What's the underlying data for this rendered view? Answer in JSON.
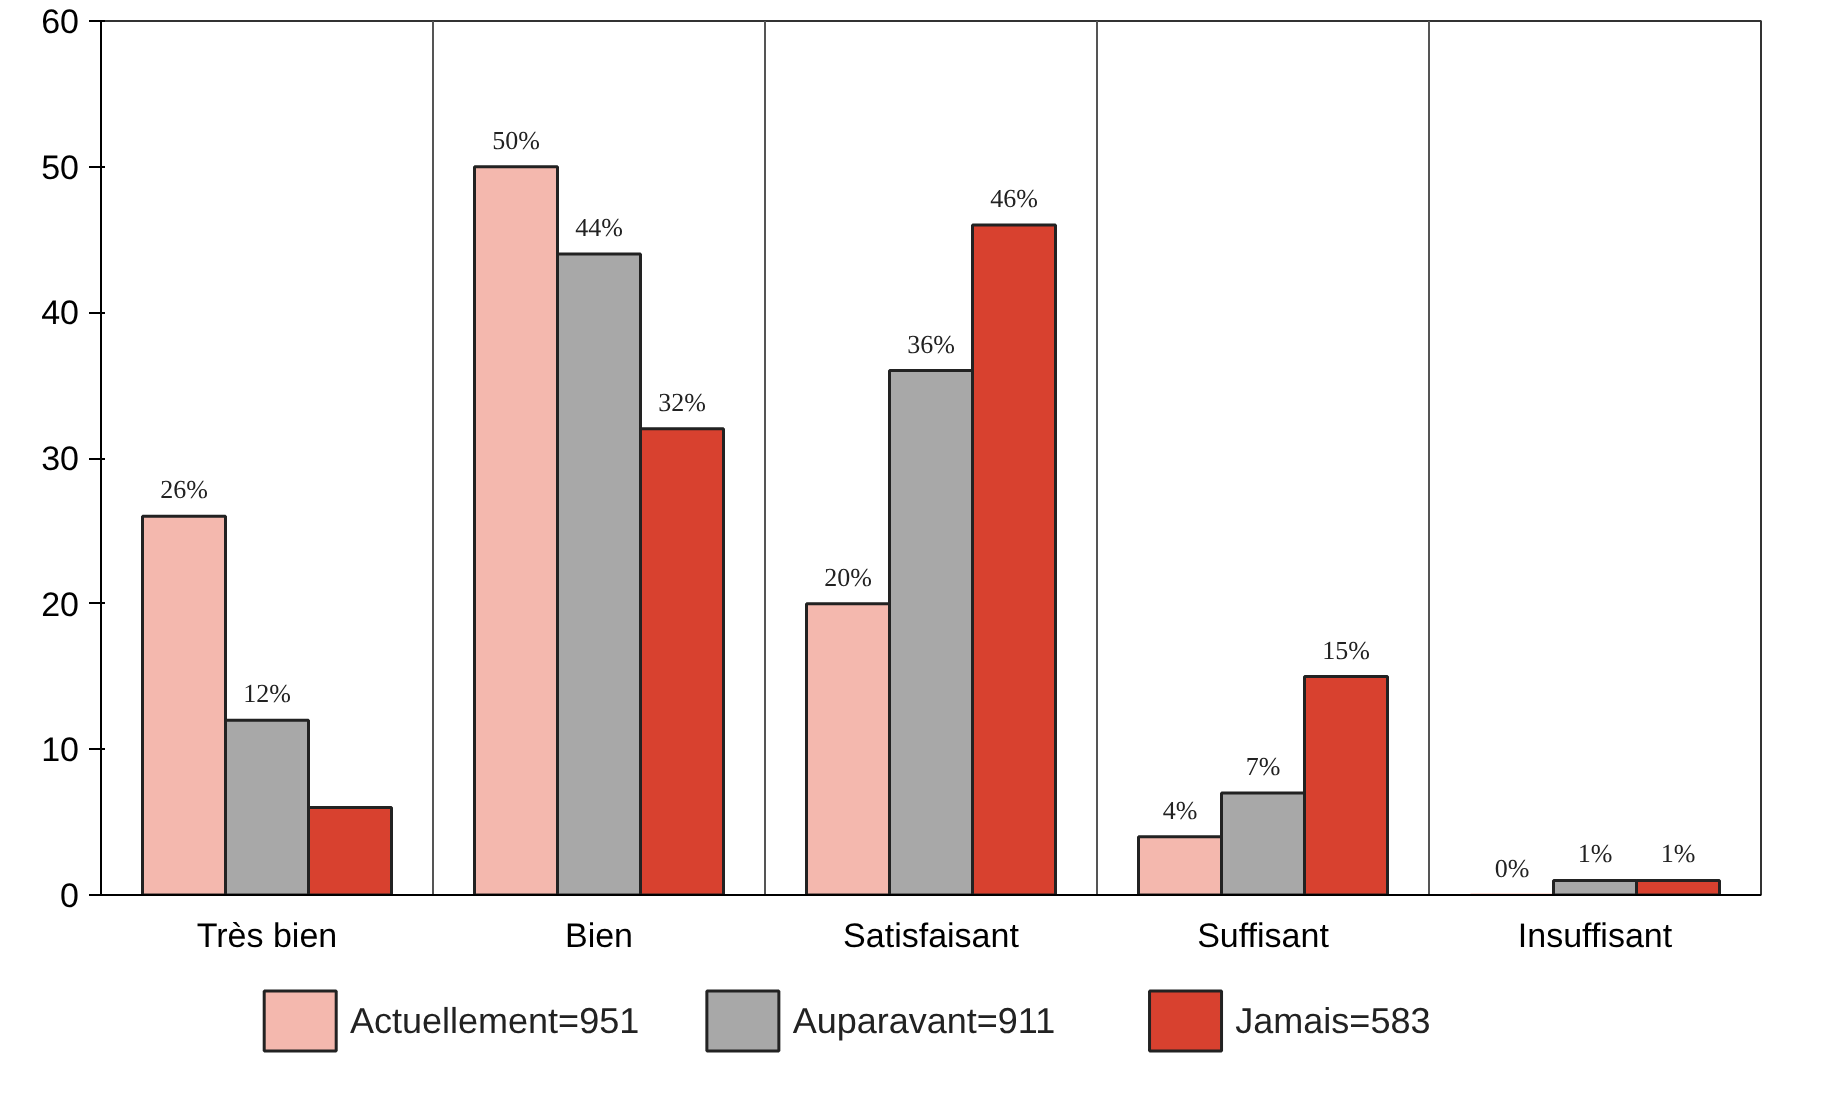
{
  "chart_data": {
    "type": "bar",
    "categories": [
      "Très bien",
      "Bien",
      "Satisfaisant",
      "Suffisant",
      "Insuffisant"
    ],
    "series": [
      {
        "name": "Actuellement=951",
        "color": "#f4b8ae",
        "values": [
          26,
          50,
          20,
          4,
          0
        ],
        "value_labels": [
          "26%",
          "50%",
          "20%",
          "4%",
          "0%"
        ]
      },
      {
        "name": "Auparavant=911",
        "color": "#a8a8a8",
        "values": [
          12,
          44,
          36,
          7,
          1
        ],
        "value_labels": [
          "12%",
          "44%",
          "36%",
          "7%",
          "1%"
        ]
      },
      {
        "name": "Jamais=583",
        "color": "#d8412f",
        "values": [
          6,
          32,
          46,
          15,
          1
        ],
        "value_labels": [
          null,
          "32%",
          "46%",
          "15%",
          "1%"
        ]
      }
    ],
    "ylim": [
      0,
      60
    ],
    "yticks": [
      0,
      10,
      20,
      30,
      40,
      50,
      60
    ],
    "grid": "x",
    "legend": "bottom"
  }
}
